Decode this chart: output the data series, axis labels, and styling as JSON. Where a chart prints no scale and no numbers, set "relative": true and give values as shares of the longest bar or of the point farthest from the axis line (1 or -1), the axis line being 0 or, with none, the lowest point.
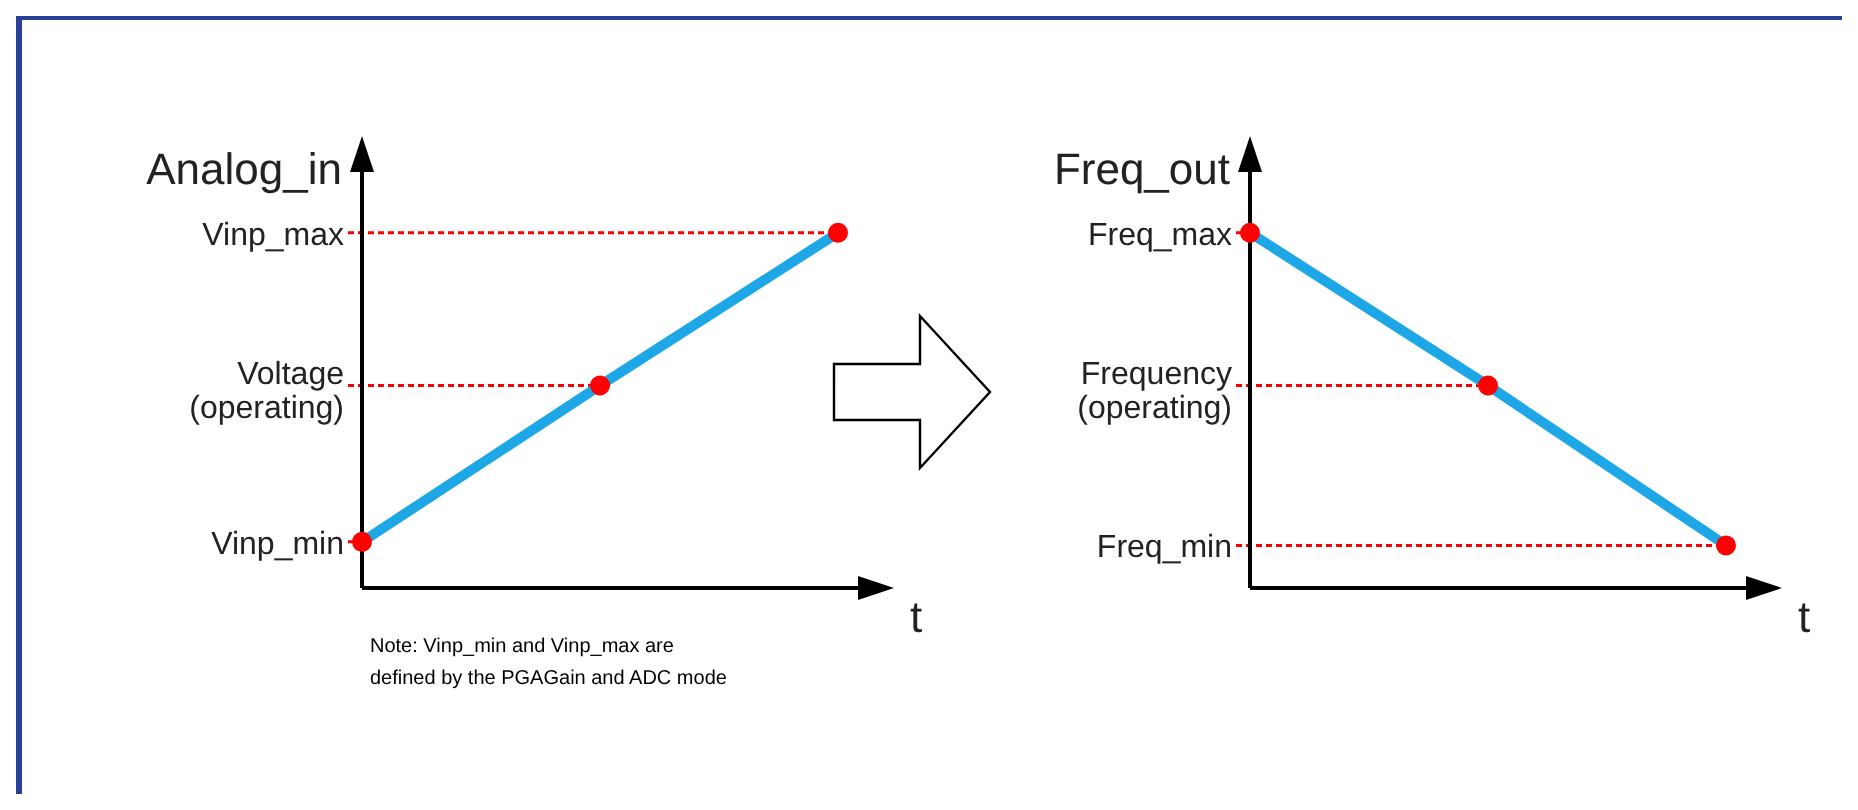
{
  "chart_data": [
    {
      "type": "line",
      "relative": true,
      "ylabel": "Analog_in",
      "xlabel": "t",
      "categories": [
        null,
        null,
        null
      ],
      "series": [
        {
          "color": "#1ea7e6",
          "colors": [
            "#ff0000",
            "#ff0000",
            "#ff0000"
          ],
          "values": [
            0.13,
            0.57,
            1
          ]
        }
      ],
      "marker": "circle",
      "line_style": "solid",
      "grid": false,
      "legend": false,
      "ref_lines": [
        {
          "axis": "y",
          "value": 1,
          "label": "Vinp_max",
          "color": "#ff0000",
          "line_style": "dotted"
        },
        {
          "axis": "y",
          "value": 0.57,
          "label": "Voltage (operating)",
          "color": "#ff0000",
          "line_style": "dotted"
        },
        {
          "axis": "y",
          "value": 0.13,
          "label": "Vinp_min",
          "color": "#ff0000",
          "line_style": "dotted"
        }
      ],
      "annotations": [
        "Note: Vinp_min and Vinp_max are defined by the PGAGain and ADC mode"
      ]
    },
    {
      "type": "line",
      "relative": true,
      "ylabel": "Freq_out",
      "xlabel": "t",
      "categories": [
        null,
        null,
        null
      ],
      "series": [
        {
          "color": "#1ea7e6",
          "colors": [
            "#ff0000",
            "#ff0000",
            "#ff0000"
          ],
          "values": [
            1,
            0.57,
            0.12
          ]
        }
      ],
      "marker": "circle",
      "line_style": "solid",
      "grid": false,
      "legend": false,
      "ref_lines": [
        {
          "axis": "y",
          "value": 1,
          "label": "Freq_max",
          "color": "#ff0000",
          "line_style": "dotted"
        },
        {
          "axis": "y",
          "value": 0.57,
          "label": "Frequency (operating)",
          "color": "#ff0000",
          "line_style": "dotted"
        },
        {
          "axis": "y",
          "value": 0.12,
          "label": "Freq_min",
          "color": "#ff0000",
          "line_style": "dotted"
        }
      ]
    }
  ]
}
